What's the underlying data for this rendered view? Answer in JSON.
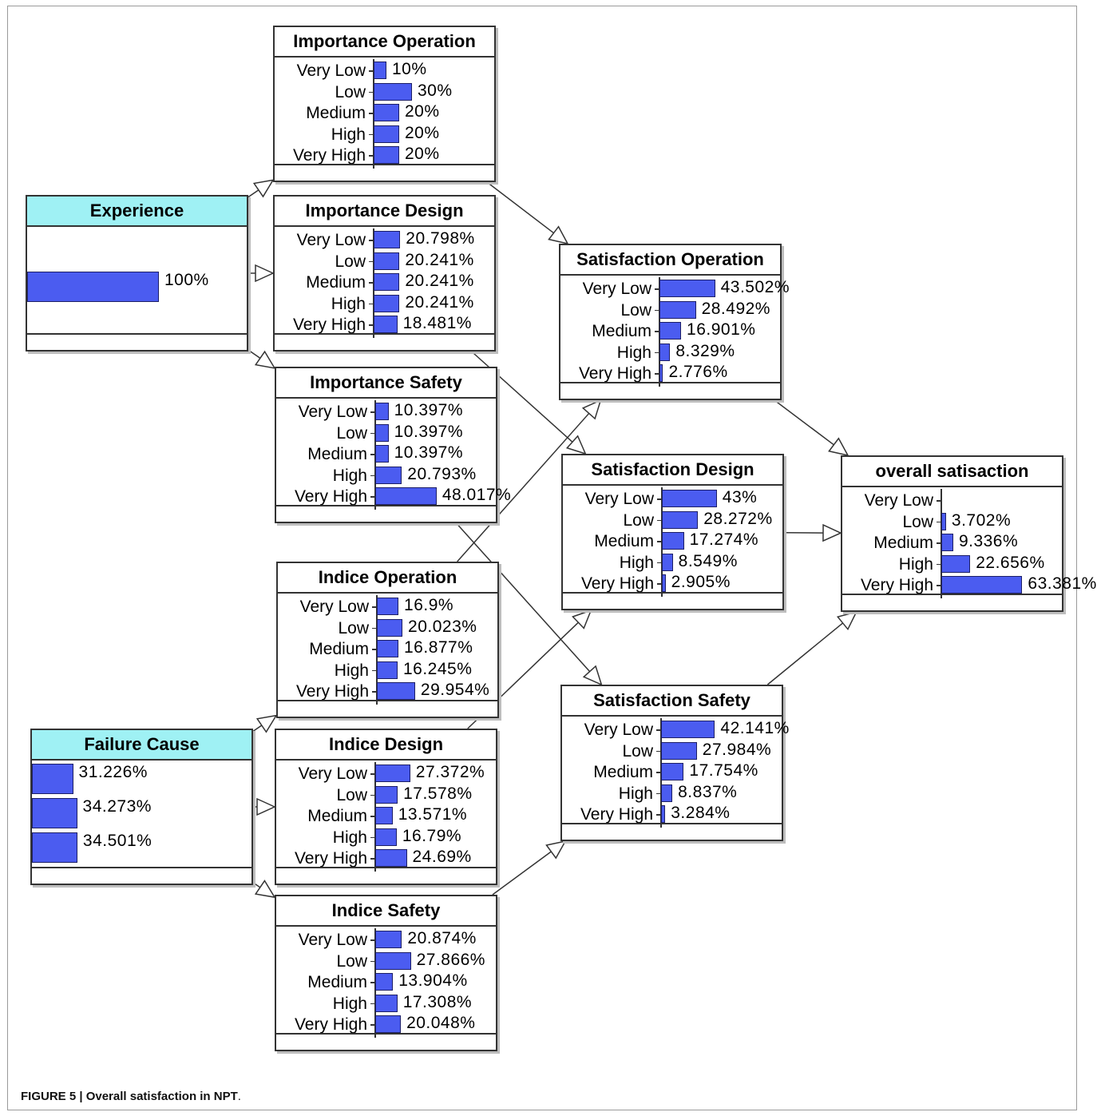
{
  "figure": {
    "caption_label": "FIGURE 5 | Overall satisfaction in NPT",
    "caption_end": "."
  },
  "colors": {
    "bar": "#4b5cf0",
    "input_header": "#9ff1f4",
    "border": "#333333"
  },
  "nodes": [
    {
      "id": "experience",
      "title": "Experience",
      "kind": "input",
      "states": [
        {
          "label": "",
          "pct": 100,
          "text": "100%"
        }
      ]
    },
    {
      "id": "failure_cause",
      "title": "Failure Cause",
      "kind": "input",
      "states": [
        {
          "label": "",
          "pct": 31.226,
          "text": "31.226%"
        },
        {
          "label": "",
          "pct": 34.273,
          "text": "34.273%"
        },
        {
          "label": "",
          "pct": 34.501,
          "text": "34.501%"
        }
      ]
    },
    {
      "id": "importance_operation",
      "title": "Importance Operation",
      "kind": "node",
      "states": [
        {
          "label": "Very Low",
          "pct": 10,
          "text": "10%"
        },
        {
          "label": "Low",
          "pct": 30,
          "text": "30%"
        },
        {
          "label": "Medium",
          "pct": 20,
          "text": "20%"
        },
        {
          "label": "High",
          "pct": 20,
          "text": "20%"
        },
        {
          "label": "Very High",
          "pct": 20,
          "text": "20%"
        }
      ]
    },
    {
      "id": "importance_design",
      "title": "Importance Design",
      "kind": "node",
      "states": [
        {
          "label": "Very Low",
          "pct": 20.798,
          "text": "20.798%"
        },
        {
          "label": "Low",
          "pct": 20.241,
          "text": "20.241%"
        },
        {
          "label": "Medium",
          "pct": 20.241,
          "text": "20.241%"
        },
        {
          "label": "High",
          "pct": 20.241,
          "text": "20.241%"
        },
        {
          "label": "Very High",
          "pct": 18.481,
          "text": "18.481%"
        }
      ]
    },
    {
      "id": "importance_safety",
      "title": "Importance Safety",
      "kind": "node",
      "states": [
        {
          "label": "Very Low",
          "pct": 10.397,
          "text": "10.397%"
        },
        {
          "label": "Low",
          "pct": 10.397,
          "text": "10.397%"
        },
        {
          "label": "Medium",
          "pct": 10.397,
          "text": "10.397%"
        },
        {
          "label": "High",
          "pct": 20.793,
          "text": "20.793%"
        },
        {
          "label": "Very High",
          "pct": 48.017,
          "text": "48.017%"
        }
      ]
    },
    {
      "id": "indice_operation",
      "title": "Indice Operation",
      "kind": "node",
      "states": [
        {
          "label": "Very Low",
          "pct": 16.9,
          "text": "16.9%"
        },
        {
          "label": "Low",
          "pct": 20.023,
          "text": "20.023%"
        },
        {
          "label": "Medium",
          "pct": 16.877,
          "text": "16.877%"
        },
        {
          "label": "High",
          "pct": 16.245,
          "text": "16.245%"
        },
        {
          "label": "Very High",
          "pct": 29.954,
          "text": "29.954%"
        }
      ]
    },
    {
      "id": "indice_design",
      "title": "Indice Design",
      "kind": "node",
      "states": [
        {
          "label": "Very Low",
          "pct": 27.372,
          "text": "27.372%"
        },
        {
          "label": "Low",
          "pct": 17.578,
          "text": "17.578%"
        },
        {
          "label": "Medium",
          "pct": 13.571,
          "text": "13.571%"
        },
        {
          "label": "High",
          "pct": 16.79,
          "text": "16.79%"
        },
        {
          "label": "Very High",
          "pct": 24.69,
          "text": "24.69%"
        }
      ]
    },
    {
      "id": "indice_safety",
      "title": "Indice Safety",
      "kind": "node",
      "states": [
        {
          "label": "Very Low",
          "pct": 20.874,
          "text": "20.874%"
        },
        {
          "label": "Low",
          "pct": 27.866,
          "text": "27.866%"
        },
        {
          "label": "Medium",
          "pct": 13.904,
          "text": "13.904%"
        },
        {
          "label": "High",
          "pct": 17.308,
          "text": "17.308%"
        },
        {
          "label": "Very High",
          "pct": 20.048,
          "text": "20.048%"
        }
      ]
    },
    {
      "id": "satisfaction_operation",
      "title": "Satisfaction Operation",
      "kind": "node",
      "states": [
        {
          "label": "Very Low",
          "pct": 43.502,
          "text": "43.502%"
        },
        {
          "label": "Low",
          "pct": 28.492,
          "text": "28.492%"
        },
        {
          "label": "Medium",
          "pct": 16.901,
          "text": "16.901%"
        },
        {
          "label": "High",
          "pct": 8.329,
          "text": "8.329%"
        },
        {
          "label": "Very High",
          "pct": 2.776,
          "text": "2.776%"
        }
      ]
    },
    {
      "id": "satisfaction_design",
      "title": "Satisfaction Design",
      "kind": "node",
      "states": [
        {
          "label": "Very Low",
          "pct": 43,
          "text": "43%"
        },
        {
          "label": "Low",
          "pct": 28.272,
          "text": "28.272%"
        },
        {
          "label": "Medium",
          "pct": 17.274,
          "text": "17.274%"
        },
        {
          "label": "High",
          "pct": 8.549,
          "text": "8.549%"
        },
        {
          "label": "Very High",
          "pct": 2.905,
          "text": "2.905%"
        }
      ]
    },
    {
      "id": "satisfaction_safety",
      "title": "Satisfaction Safety",
      "kind": "node",
      "states": [
        {
          "label": "Very Low",
          "pct": 42.141,
          "text": "42.141%"
        },
        {
          "label": "Low",
          "pct": 27.984,
          "text": "27.984%"
        },
        {
          "label": "Medium",
          "pct": 17.754,
          "text": "17.754%"
        },
        {
          "label": "High",
          "pct": 8.837,
          "text": "8.837%"
        },
        {
          "label": "Very High",
          "pct": 3.284,
          "text": "3.284%"
        }
      ]
    },
    {
      "id": "overall_satisfaction",
      "title": "overall satisaction",
      "kind": "node",
      "states": [
        {
          "label": "Very Low",
          "pct": 0,
          "text": ""
        },
        {
          "label": "Low",
          "pct": 3.702,
          "text": "3.702%"
        },
        {
          "label": "Medium",
          "pct": 9.336,
          "text": "9.336%"
        },
        {
          "label": "High",
          "pct": 22.656,
          "text": "22.656%"
        },
        {
          "label": "Very High",
          "pct": 63.381,
          "text": "63.381%"
        }
      ]
    }
  ],
  "edges": [
    {
      "from": "experience",
      "to": "importance_operation"
    },
    {
      "from": "experience",
      "to": "importance_design"
    },
    {
      "from": "experience",
      "to": "importance_safety"
    },
    {
      "from": "failure_cause",
      "to": "indice_operation"
    },
    {
      "from": "failure_cause",
      "to": "indice_design"
    },
    {
      "from": "failure_cause",
      "to": "indice_safety"
    },
    {
      "from": "importance_operation",
      "to": "satisfaction_operation"
    },
    {
      "from": "importance_design",
      "to": "satisfaction_design"
    },
    {
      "from": "importance_safety",
      "to": "satisfaction_safety"
    },
    {
      "from": "indice_operation",
      "to": "satisfaction_operation"
    },
    {
      "from": "indice_design",
      "to": "satisfaction_design"
    },
    {
      "from": "indice_safety",
      "to": "satisfaction_safety"
    },
    {
      "from": "satisfaction_operation",
      "to": "overall_satisfaction"
    },
    {
      "from": "satisfaction_design",
      "to": "overall_satisfaction"
    },
    {
      "from": "satisfaction_safety",
      "to": "overall_satisfaction"
    }
  ]
}
